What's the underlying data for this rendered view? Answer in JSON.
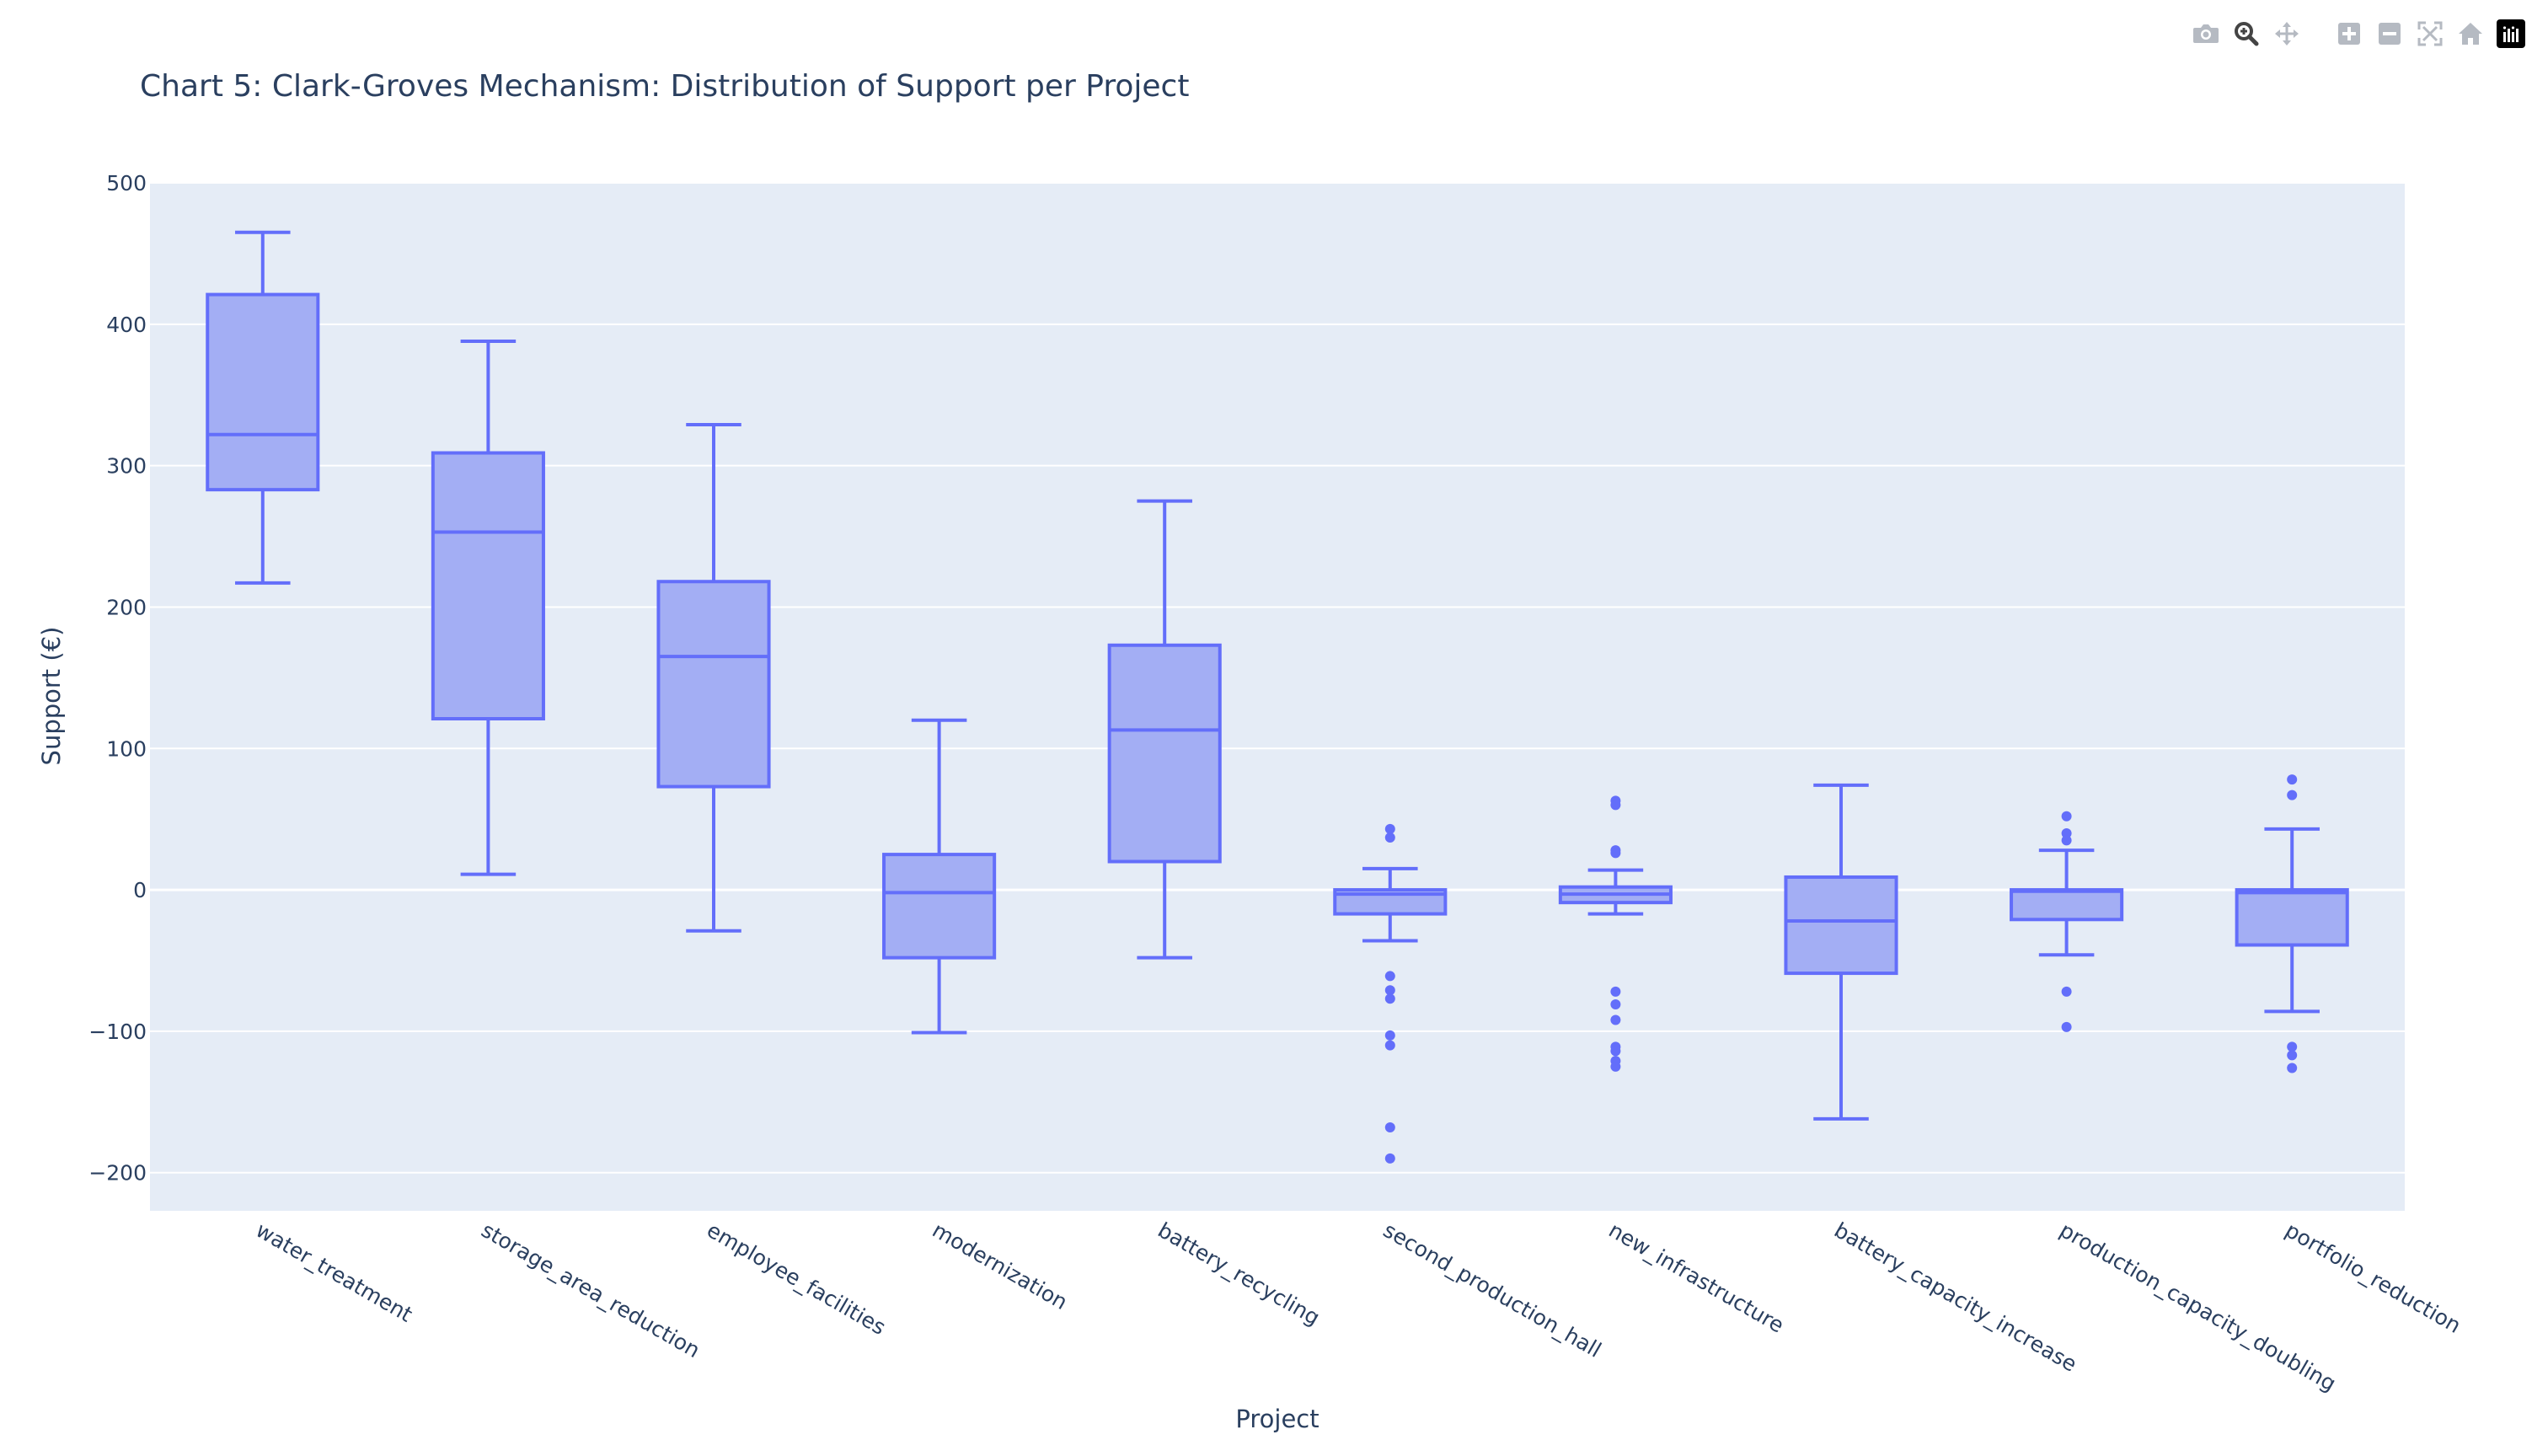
{
  "modebar": {
    "icons": [
      "camera-icon",
      "zoom-icon",
      "pan-icon",
      "zoom-in-icon",
      "zoom-out-icon",
      "autoscale-icon",
      "home-icon",
      "plotly-logo-icon"
    ],
    "icon_color": "#b5bac2",
    "active_color": "#444444"
  },
  "chart_data": {
    "type": "box",
    "title": "Chart 5: Clark-Groves Mechanism: Distribution of Support per Project",
    "xlabel": "Project",
    "ylabel": "Support (€)",
    "ylim": [
      -227,
      500
    ],
    "yticks": [
      500,
      400,
      300,
      200,
      100,
      0,
      -100,
      -200
    ],
    "ytick_labels": [
      "500",
      "400",
      "300",
      "200",
      "100",
      "0",
      "−100",
      "−200"
    ],
    "grid": true,
    "colors": {
      "box_fill": "#a3aef4",
      "box_line": "#636efa",
      "plot_bg": "#e5ecf6",
      "grid": "#ffffff",
      "text": "#2a3f5f"
    },
    "categories": [
      "water_treatment",
      "storage_area_reduction",
      "employee_facilities",
      "modernization",
      "battery_recycling",
      "second_production_hall",
      "new_infrastructure",
      "battery_capacity_increase",
      "production_capacity_doubling",
      "portfolio_reduction"
    ],
    "boxes": [
      {
        "name": "water_treatment",
        "lower_whisker": 217,
        "q1": 283,
        "median": 322,
        "q3": 421,
        "upper_whisker": 465,
        "outliers": []
      },
      {
        "name": "storage_area_reduction",
        "lower_whisker": 11,
        "q1": 121,
        "median": 253,
        "q3": 309,
        "upper_whisker": 388,
        "outliers": []
      },
      {
        "name": "employee_facilities",
        "lower_whisker": -29,
        "q1": 73,
        "median": 165,
        "q3": 218,
        "upper_whisker": 329,
        "outliers": []
      },
      {
        "name": "modernization",
        "lower_whisker": -101,
        "q1": -48,
        "median": -2,
        "q3": 25,
        "upper_whisker": 120,
        "outliers": []
      },
      {
        "name": "battery_recycling",
        "lower_whisker": -48,
        "q1": 20,
        "median": 113,
        "q3": 173,
        "upper_whisker": 275,
        "outliers": []
      },
      {
        "name": "second_production_hall",
        "lower_whisker": -36,
        "q1": -17,
        "median": -3,
        "q3": 0,
        "upper_whisker": 15,
        "outliers": [
          43,
          37,
          -61,
          -71,
          -77,
          -103,
          -110,
          -168,
          -190
        ]
      },
      {
        "name": "new_infrastructure",
        "lower_whisker": -17,
        "q1": -9,
        "median": -3,
        "q3": 2,
        "upper_whisker": 14,
        "outliers": [
          63,
          60,
          28,
          26,
          -72,
          -81,
          -92,
          -111,
          -114,
          -121,
          -125
        ]
      },
      {
        "name": "battery_capacity_increase",
        "lower_whisker": -162,
        "q1": -59,
        "median": -22,
        "q3": 9,
        "upper_whisker": 74,
        "outliers": []
      },
      {
        "name": "production_capacity_doubling",
        "lower_whisker": -46,
        "q1": -21,
        "median": -1,
        "q3": 0,
        "upper_whisker": 28,
        "outliers": [
          52,
          40,
          35,
          -72,
          -97
        ]
      },
      {
        "name": "portfolio_reduction",
        "lower_whisker": -86,
        "q1": -39,
        "median": -2,
        "q3": 0,
        "upper_whisker": 43,
        "outliers": [
          78,
          67,
          -111,
          -117,
          -126
        ]
      }
    ]
  }
}
